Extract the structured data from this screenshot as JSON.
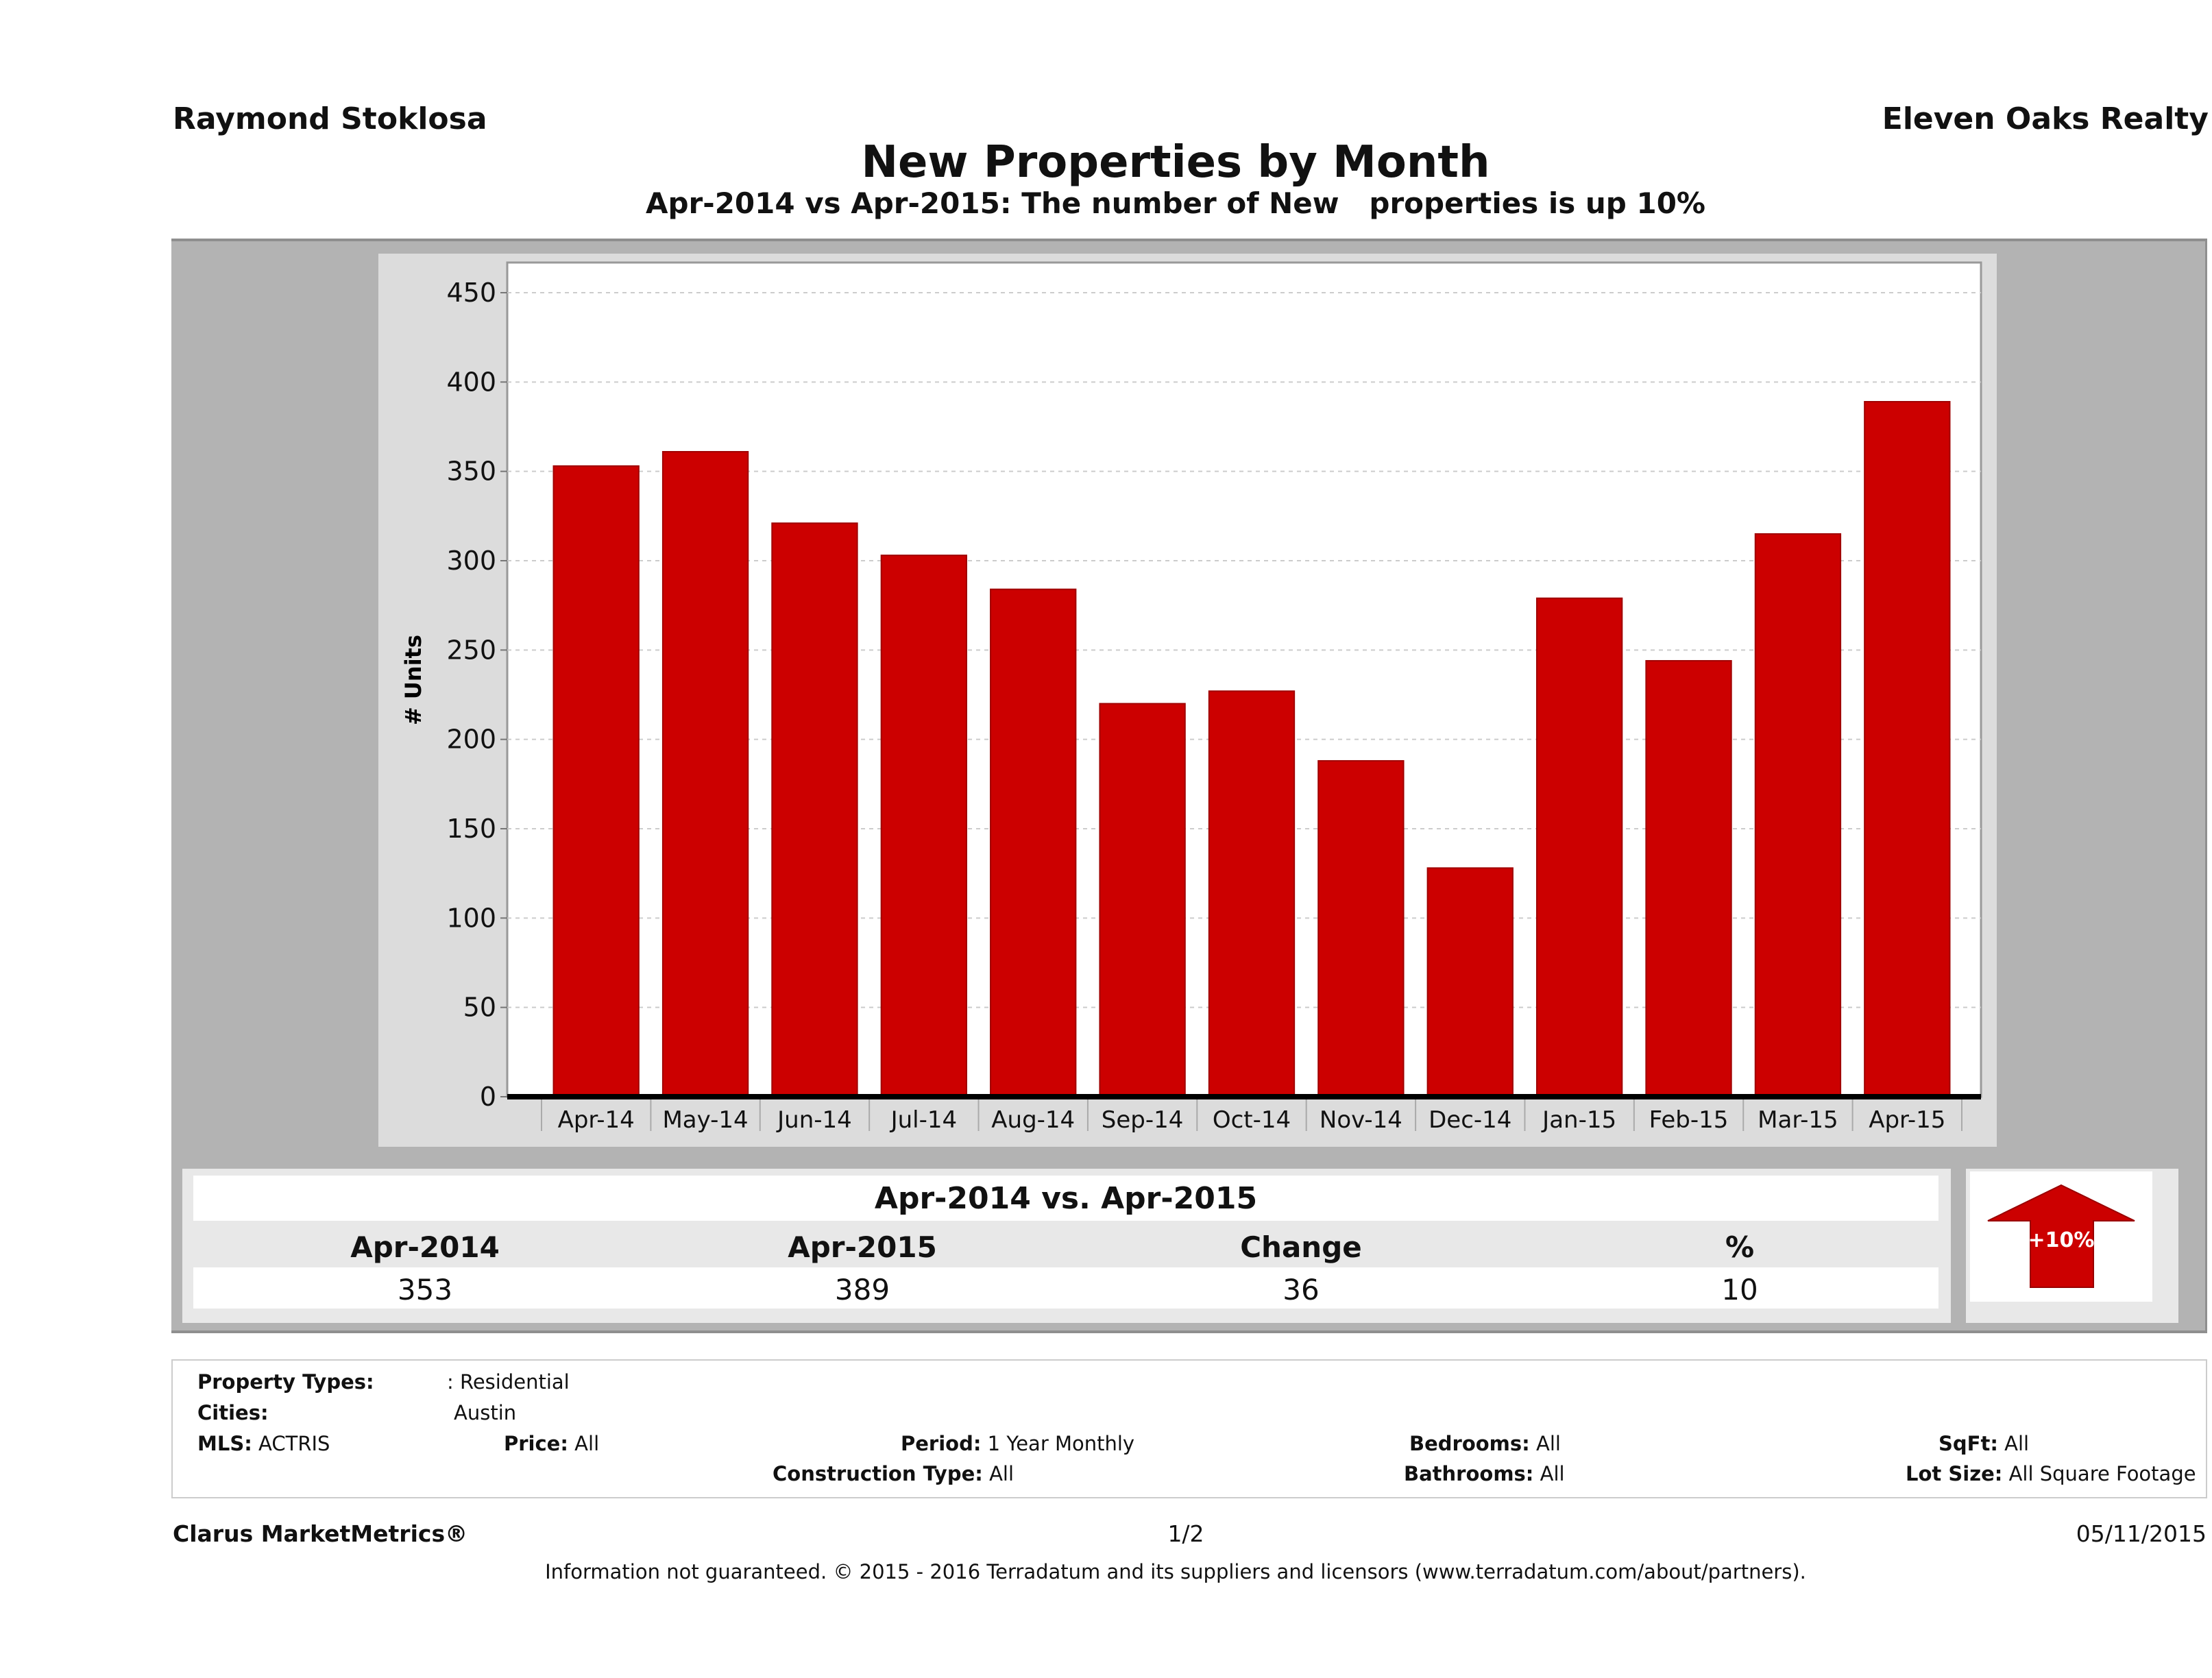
{
  "header": {
    "agent_name": "Raymond Stoklosa",
    "brokerage": "Eleven Oaks Realty",
    "title": "New Properties by Month",
    "subtitle": "Apr-2014 vs Apr-2015: The number of New   properties is up 10%"
  },
  "chart_data": {
    "type": "bar",
    "title": "New Properties by Month",
    "subtitle": "Apr-2014 vs Apr-2015: The number of New   properties is up 10%",
    "xlabel": "",
    "ylabel": "# Units",
    "categories": [
      "Apr-14",
      "May-14",
      "Jun-14",
      "Jul-14",
      "Aug-14",
      "Sep-14",
      "Oct-14",
      "Nov-14",
      "Dec-14",
      "Jan-15",
      "Feb-15",
      "Mar-15",
      "Apr-15"
    ],
    "values": [
      353,
      361,
      321,
      303,
      284,
      220,
      227,
      188,
      128,
      279,
      244,
      315,
      389
    ],
    "ylim": [
      0,
      450
    ],
    "yticks": [
      0,
      50,
      100,
      150,
      200,
      250,
      300,
      350,
      400,
      450
    ],
    "grid": true,
    "legend": "none",
    "bar_color": "#cc0000"
  },
  "summary": {
    "heading": "Apr-2014 vs. Apr-2015",
    "columns": [
      "Apr-2014",
      "Apr-2015",
      "Change",
      "%"
    ],
    "values": [
      "353",
      "389",
      "36",
      "10"
    ],
    "badge": "+10%",
    "badge_color": "#cc0000"
  },
  "filters": {
    "property_types_label": "Property Types:",
    "property_types_value": ": Residential",
    "cities_label": "Cities:",
    "cities_value": "Austin",
    "mls_label": "MLS:",
    "mls_value": "ACTRIS",
    "price_label": "Price:",
    "price_value": "All",
    "period_label": "Period:",
    "period_value": "1 Year Monthly",
    "construction_label": "Construction Type:",
    "construction_value": "All",
    "bedrooms_label": "Bedrooms:",
    "bedrooms_value": "All",
    "bathrooms_label": "Bathrooms:",
    "bathrooms_value": "All",
    "sqft_label": "SqFt:",
    "sqft_value": "All",
    "lotsize_label": "Lot Size:",
    "lotsize_value": "All Square Footage"
  },
  "footer": {
    "product": "Clarus MarketMetrics®",
    "page": "1/2",
    "date": "05/11/2015",
    "disclaimer": "Information not guaranteed. © 2015 - 2016 Terradatum and its suppliers and licensors (www.terradatum.com/about/partners)."
  }
}
